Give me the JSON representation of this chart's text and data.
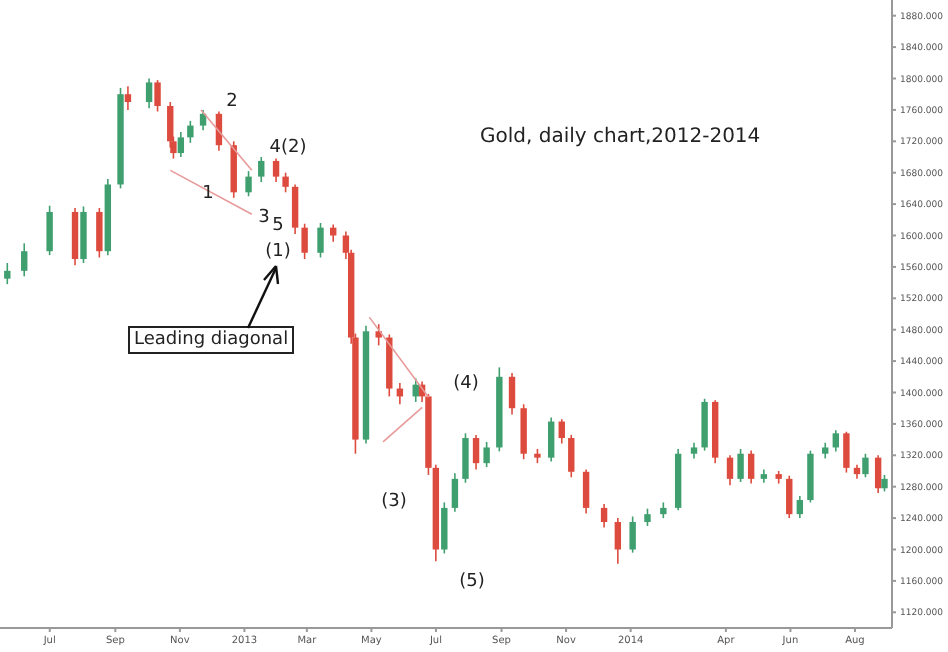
{
  "chart_data": {
    "type": "candlestick",
    "title": "Gold, daily chart,2012-2014",
    "x": [
      "2012-05-22",
      "2012-06-07",
      "2012-07-01",
      "2012-07-25",
      "2012-08-02",
      "2012-08-17",
      "2012-08-25",
      "2012-09-06",
      "2012-09-13",
      "2012-10-03",
      "2012-10-11",
      "2012-10-23",
      "2012-10-26",
      "2012-11-02",
      "2012-11-11",
      "2012-11-23",
      "2012-12-08",
      "2012-12-22",
      "2013-01-05",
      "2013-01-17",
      "2013-01-31",
      "2013-02-09",
      "2013-02-18",
      "2013-02-27",
      "2013-03-14",
      "2013-03-26",
      "2013-04-07",
      "2013-04-12",
      "2013-04-16",
      "2013-04-26",
      "2013-05-08",
      "2013-05-18",
      "2013-05-28",
      "2013-06-12",
      "2013-06-18",
      "2013-06-24",
      "2013-07-01",
      "2013-07-09",
      "2013-07-19",
      "2013-07-29",
      "2013-08-08",
      "2013-08-18",
      "2013-08-30",
      "2013-09-11",
      "2013-09-22",
      "2013-10-05",
      "2013-10-18",
      "2013-10-28",
      "2013-11-06",
      "2013-11-20",
      "2013-12-07",
      "2013-12-20",
      "2014-01-03",
      "2014-01-17",
      "2014-02-01",
      "2014-02-15",
      "2014-03-02",
      "2014-03-12",
      "2014-03-22",
      "2014-04-05",
      "2014-04-15",
      "2014-04-25",
      "2014-05-07",
      "2014-05-21",
      "2014-05-31",
      "2014-06-10",
      "2014-06-20",
      "2014-07-04",
      "2014-07-14",
      "2014-07-24",
      "2014-08-03",
      "2014-08-11",
      "2014-08-23",
      "2014-08-29"
    ],
    "ohlc": [
      [
        1545,
        1565,
        1538,
        1555
      ],
      [
        1555,
        1590,
        1548,
        1580
      ],
      [
        1580,
        1638,
        1575,
        1630
      ],
      [
        1630,
        1635,
        1562,
        1570
      ],
      [
        1570,
        1637,
        1565,
        1630
      ],
      [
        1630,
        1635,
        1572,
        1580
      ],
      [
        1580,
        1672,
        1575,
        1665
      ],
      [
        1665,
        1788,
        1660,
        1780
      ],
      [
        1780,
        1790,
        1760,
        1770
      ],
      [
        1770,
        1800,
        1762,
        1795
      ],
      [
        1795,
        1798,
        1758,
        1765
      ],
      [
        1765,
        1770,
        1712,
        1720
      ],
      [
        1720,
        1726,
        1698,
        1705
      ],
      [
        1705,
        1732,
        1700,
        1725
      ],
      [
        1725,
        1746,
        1718,
        1740
      ],
      [
        1740,
        1760,
        1734,
        1755
      ],
      [
        1755,
        1758,
        1708,
        1715
      ],
      [
        1715,
        1720,
        1648,
        1655
      ],
      [
        1655,
        1682,
        1650,
        1675
      ],
      [
        1675,
        1700,
        1668,
        1695
      ],
      [
        1695,
        1698,
        1668,
        1675
      ],
      [
        1675,
        1680,
        1655,
        1662
      ],
      [
        1662,
        1665,
        1602,
        1610
      ],
      [
        1610,
        1615,
        1570,
        1578
      ],
      [
        1578,
        1616,
        1572,
        1610
      ],
      [
        1610,
        1614,
        1592,
        1600
      ],
      [
        1600,
        1605,
        1570,
        1578
      ],
      [
        1578,
        1582,
        1462,
        1470
      ],
      [
        1470,
        1475,
        1322,
        1340
      ],
      [
        1340,
        1485,
        1335,
        1478
      ],
      [
        1478,
        1487,
        1460,
        1470
      ],
      [
        1470,
        1474,
        1395,
        1405
      ],
      [
        1405,
        1412,
        1385,
        1395
      ],
      [
        1395,
        1418,
        1388,
        1410
      ],
      [
        1410,
        1414,
        1388,
        1395
      ],
      [
        1395,
        1398,
        1295,
        1304
      ],
      [
        1304,
        1308,
        1185,
        1200
      ],
      [
        1200,
        1260,
        1195,
        1253
      ],
      [
        1253,
        1297,
        1248,
        1290
      ],
      [
        1290,
        1348,
        1285,
        1342
      ],
      [
        1342,
        1346,
        1302,
        1310
      ],
      [
        1310,
        1337,
        1305,
        1330
      ],
      [
        1330,
        1432,
        1325,
        1420
      ],
      [
        1420,
        1425,
        1372,
        1380
      ],
      [
        1380,
        1385,
        1315,
        1322
      ],
      [
        1322,
        1328,
        1310,
        1317
      ],
      [
        1317,
        1368,
        1312,
        1363
      ],
      [
        1363,
        1366,
        1335,
        1342
      ],
      [
        1342,
        1346,
        1292,
        1299
      ],
      [
        1299,
        1302,
        1246,
        1253
      ],
      [
        1253,
        1258,
        1228,
        1235
      ],
      [
        1235,
        1240,
        1182,
        1200
      ],
      [
        1200,
        1242,
        1196,
        1235
      ],
      [
        1235,
        1252,
        1230,
        1245
      ],
      [
        1245,
        1260,
        1240,
        1253
      ],
      [
        1253,
        1328,
        1250,
        1322
      ],
      [
        1322,
        1336,
        1316,
        1330
      ],
      [
        1330,
        1392,
        1326,
        1388
      ],
      [
        1388,
        1390,
        1310,
        1317
      ],
      [
        1317,
        1320,
        1282,
        1290
      ],
      [
        1290,
        1328,
        1286,
        1322
      ],
      [
        1322,
        1326,
        1284,
        1290
      ],
      [
        1290,
        1302,
        1285,
        1296
      ],
      [
        1296,
        1300,
        1284,
        1290
      ],
      [
        1290,
        1294,
        1240,
        1245
      ],
      [
        1245,
        1268,
        1240,
        1263
      ],
      [
        1263,
        1326,
        1260,
        1322
      ],
      [
        1322,
        1336,
        1316,
        1330
      ],
      [
        1330,
        1352,
        1325,
        1348
      ],
      [
        1348,
        1350,
        1298,
        1304
      ],
      [
        1304,
        1308,
        1290,
        1296
      ],
      [
        1296,
        1322,
        1292,
        1317
      ],
      [
        1317,
        1320,
        1272,
        1278
      ],
      [
        1278,
        1295,
        1274,
        1290
      ]
    ],
    "colors": [
      "#3f9f6f",
      "#3f9f6f",
      "#3f9f6f",
      "#dd4b3e",
      "#3f9f6f",
      "#dd4b3e",
      "#3f9f6f",
      "#3f9f6f",
      "#dd4b3e",
      "#3f9f6f",
      "#dd4b3e",
      "#dd4b3e",
      "#dd4b3e",
      "#3f9f6f",
      "#3f9f6f",
      "#3f9f6f",
      "#dd4b3e",
      "#dd4b3e",
      "#3f9f6f",
      "#3f9f6f",
      "#dd4b3e",
      "#dd4b3e",
      "#dd4b3e",
      "#dd4b3e",
      "#3f9f6f",
      "#dd4b3e",
      "#dd4b3e",
      "#dd4b3e",
      "#dd4b3e",
      "#3f9f6f",
      "#dd4b3e",
      "#dd4b3e",
      "#dd4b3e",
      "#3f9f6f",
      "#dd4b3e",
      "#dd4b3e",
      "#dd4b3e",
      "#3f9f6f",
      "#3f9f6f",
      "#3f9f6f",
      "#dd4b3e",
      "#3f9f6f",
      "#3f9f6f",
      "#dd4b3e",
      "#dd4b3e",
      "#dd4b3e",
      "#3f9f6f",
      "#dd4b3e",
      "#dd4b3e",
      "#dd4b3e",
      "#dd4b3e",
      "#dd4b3e",
      "#3f9f6f",
      "#3f9f6f",
      "#3f9f6f",
      "#3f9f6f",
      "#3f9f6f",
      "#3f9f6f",
      "#dd4b3e",
      "#dd4b3e",
      "#3f9f6f",
      "#dd4b3e",
      "#3f9f6f",
      "#dd4b3e",
      "#dd4b3e",
      "#3f9f6f",
      "#3f9f6f",
      "#3f9f6f",
      "#3f9f6f",
      "#dd4b3e",
      "#dd4b3e",
      "#3f9f6f",
      "#dd4b3e",
      "#3f9f6f"
    ],
    "series": [
      {
        "type": "line",
        "color": "#e89a9a",
        "x": [
          "2012-10-23",
          "2013-01-08"
        ],
        "values": [
          1683,
          1627
        ]
      },
      {
        "type": "line",
        "color": "#e89a9a",
        "x": [
          "2012-11-21",
          "2013-01-08"
        ],
        "values": [
          1760,
          1683
        ]
      },
      {
        "type": "line",
        "color": "#e89a9a",
        "x": [
          "2013-04-29",
          "2013-06-24"
        ],
        "values": [
          1496,
          1394
        ]
      },
      {
        "type": "line",
        "color": "#e89a9a",
        "x": [
          "2013-05-12",
          "2013-06-18"
        ],
        "values": [
          1337,
          1381
        ]
      }
    ],
    "xlim": [
      "2012-05-15",
      "2014-09-05"
    ],
    "xticks": [
      {
        "value": "2012-07-01",
        "label": "Jul"
      },
      {
        "value": "2012-09-01",
        "label": "Sep"
      },
      {
        "value": "2012-11-01",
        "label": "Nov"
      },
      {
        "value": "2013-01-01",
        "label": "2013"
      },
      {
        "value": "2013-03-01",
        "label": "Mar"
      },
      {
        "value": "2013-05-01",
        "label": "May"
      },
      {
        "value": "2013-07-01",
        "label": "Jul"
      },
      {
        "value": "2013-09-01",
        "label": "Sep"
      },
      {
        "value": "2013-11-01",
        "label": "Nov"
      },
      {
        "value": "2014-01-01",
        "label": "2014"
      },
      {
        "value": "2014-04-01",
        "label": "Apr"
      },
      {
        "value": "2014-06-01",
        "label": "Jun"
      },
      {
        "value": "2014-08-01",
        "label": "Aug"
      }
    ],
    "ylim": [
      1100,
      1900
    ],
    "yticks": [
      {
        "value": 1120,
        "label": "1120.000"
      },
      {
        "value": 1160,
        "label": "1160.000"
      },
      {
        "value": 1200,
        "label": "1200.000"
      },
      {
        "value": 1240,
        "label": "1240.000"
      },
      {
        "value": 1280,
        "label": "1280.000"
      },
      {
        "value": 1320,
        "label": "1320.000"
      },
      {
        "value": 1360,
        "label": "1360.000"
      },
      {
        "value": 1400,
        "label": "1400.000"
      },
      {
        "value": 1440,
        "label": "1440.000"
      },
      {
        "value": 1480,
        "label": "1480.000"
      },
      {
        "value": 1520,
        "label": "1520.000"
      },
      {
        "value": 1560,
        "label": "1560.000"
      },
      {
        "value": 1600,
        "label": "1600.000"
      },
      {
        "value": 1640,
        "label": "1640.000"
      },
      {
        "value": 1680,
        "label": "1680.000"
      },
      {
        "value": 1720,
        "label": "1720.000"
      },
      {
        "value": 1760,
        "label": "1760.000"
      },
      {
        "value": 1800,
        "label": "1800.000"
      },
      {
        "value": 1840,
        "label": "1840.000"
      },
      {
        "value": 1880,
        "label": "1880.000"
      }
    ],
    "grid": false,
    "legend": false,
    "annotations": [
      "1",
      "2",
      "3",
      "4(2)",
      "5",
      "(1)",
      "(3)",
      "(4)",
      "(5)",
      "Leading diagonal"
    ]
  }
}
